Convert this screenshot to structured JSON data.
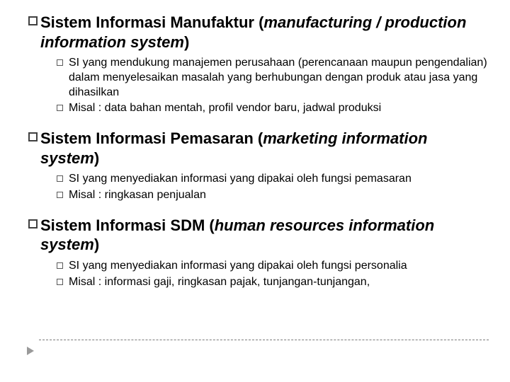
{
  "colors": {
    "text": "#000000",
    "square_border_main": "#404040",
    "square_border_sub": "#595959",
    "background": "#ffffff",
    "arrow": "#9a9a9a",
    "dash": "#7a7a7a"
  },
  "typography": {
    "heading_fontsize": 22,
    "heading_weight": "bold",
    "sub_fontsize": 16,
    "font_family": "Arial"
  },
  "sections": [
    {
      "title_bold": "Sistem Informasi Manufaktur (",
      "title_italic": "manufacturing / production information system",
      "title_close": ")",
      "items": [
        "SI yang mendukung manajemen perusahaan (perencanaan maupun pengendalian) dalam menyelesaikan masalah yang berhubungan dengan produk atau jasa yang dihasilkan",
        "Misal : data bahan mentah, profil vendor baru, jadwal produksi"
      ]
    },
    {
      "title_bold": "Sistem Informasi Pemasaran (",
      "title_italic": "marketing information system",
      "title_close": ")",
      "items": [
        "SI yang menyediakan informasi yang dipakai oleh fungsi pemasaran",
        "Misal : ringkasan penjualan"
      ]
    },
    {
      "title_bold": "Sistem Informasi SDM (",
      "title_italic": "human resources information system",
      "title_close": ")",
      "items": [
        "SI yang menyediakan informasi yang dipakai oleh fungsi personalia",
        "Misal : informasi gaji, ringkasan pajak, tunjangan-tunjangan,"
      ]
    }
  ]
}
